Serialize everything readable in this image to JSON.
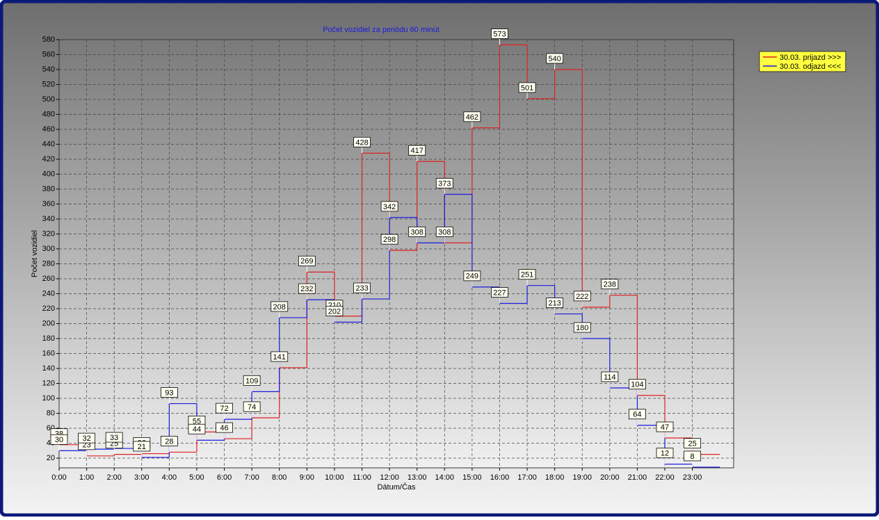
{
  "chart_data": {
    "type": "step",
    "title": "Počet vozidiel za periódu 60 minút",
    "y_label": "Počet vozidiel",
    "x_label": "Dátum/Čas",
    "categories": [
      "0:00",
      "1:00",
      "2:00",
      "3:00",
      "4:00",
      "5:00",
      "6:00",
      "7:00",
      "8:00",
      "9:00",
      "10:00",
      "11:00",
      "12:00",
      "13:00",
      "14:00",
      "15:00",
      "16:00",
      "17:00",
      "18:00",
      "19:00",
      "20:00",
      "21:00",
      "22:00",
      "23:00"
    ],
    "series": [
      {
        "name": "30.03.  prijazd >>>",
        "color": "#e02020",
        "values": [
          38,
          23,
          25,
          26,
          28,
          55,
          46,
          74,
          141,
          269,
          210,
          428,
          298,
          417,
          308,
          462,
          573,
          501,
          540,
          222,
          238,
          104,
          47,
          25
        ]
      },
      {
        "name": "30.03.  odjazd <<<",
        "color": "#1a1ae0",
        "values": [
          30,
          32,
          33,
          21,
          93,
          44,
          72,
          109,
          208,
          232,
          202,
          233,
          342,
          308,
          373,
          249,
          227,
          251,
          213,
          180,
          114,
          64,
          12,
          8
        ]
      }
    ],
    "ylim": [
      7,
      580
    ],
    "yticks": [
      20,
      40,
      60,
      80,
      100,
      120,
      140,
      160,
      180,
      200,
      220,
      240,
      260,
      280,
      300,
      320,
      340,
      360,
      380,
      400,
      420,
      440,
      460,
      480,
      500,
      520,
      540,
      560,
      580
    ],
    "grid": true,
    "legend": "top-right"
  }
}
